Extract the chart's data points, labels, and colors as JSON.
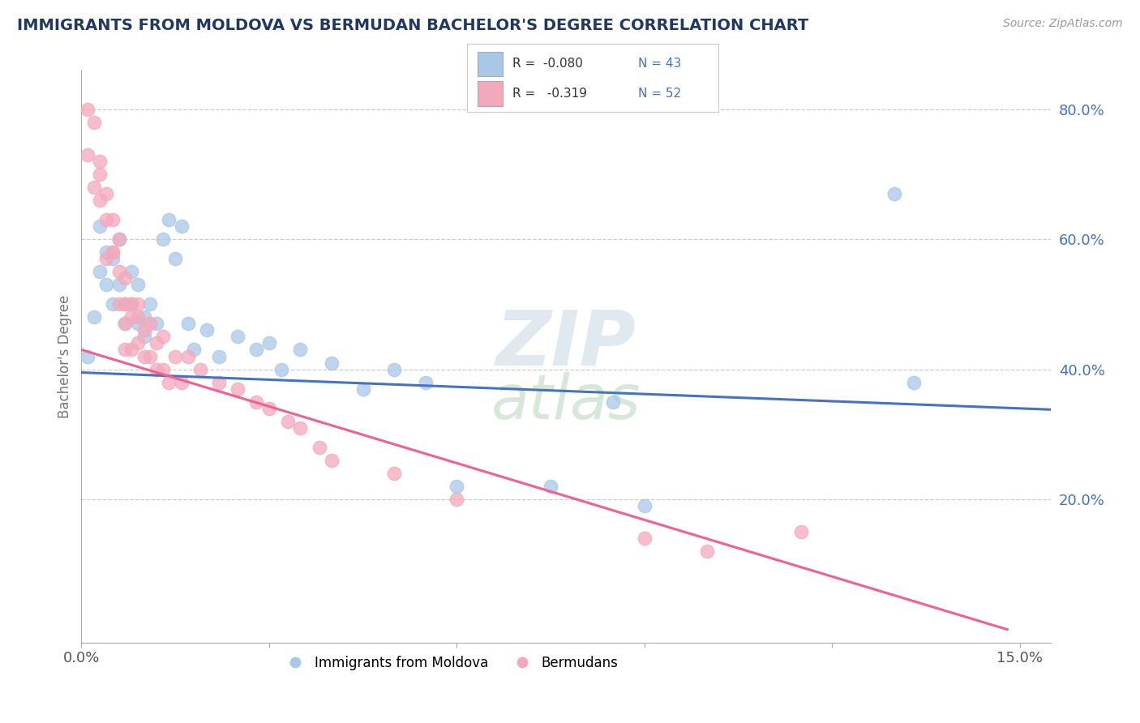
{
  "title": "IMMIGRANTS FROM MOLDOVA VS BERMUDAN BACHELOR'S DEGREE CORRELATION CHART",
  "source": "Source: ZipAtlas.com",
  "ylabel": "Bachelor's Degree",
  "x_lim": [
    0.0,
    0.155
  ],
  "y_lim": [
    -0.02,
    0.86
  ],
  "y_ticks_right": [
    0.2,
    0.4,
    0.6,
    0.8
  ],
  "y_tick_labels_right": [
    "20.0%",
    "40.0%",
    "60.0%",
    "80.0%"
  ],
  "legend_R1": "-0.080",
  "legend_N1": "43",
  "legend_R2": "-0.319",
  "legend_N2": "52",
  "blue_color": "#A8C8E8",
  "pink_color": "#F4A8BB",
  "blue_line_color": "#4472C4",
  "pink_line_color": "#F06090",
  "blue_scatter_x": [
    0.001,
    0.002,
    0.003,
    0.003,
    0.004,
    0.004,
    0.005,
    0.005,
    0.006,
    0.006,
    0.007,
    0.007,
    0.008,
    0.008,
    0.009,
    0.009,
    0.01,
    0.01,
    0.011,
    0.012,
    0.013,
    0.014,
    0.015,
    0.016,
    0.017,
    0.018,
    0.02,
    0.022,
    0.025,
    0.028,
    0.03,
    0.032,
    0.035,
    0.04,
    0.045,
    0.05,
    0.055,
    0.06,
    0.075,
    0.085,
    0.09,
    0.13,
    0.133
  ],
  "blue_scatter_y": [
    0.42,
    0.48,
    0.55,
    0.62,
    0.58,
    0.53,
    0.5,
    0.57,
    0.6,
    0.53,
    0.5,
    0.47,
    0.55,
    0.5,
    0.47,
    0.53,
    0.48,
    0.45,
    0.5,
    0.47,
    0.6,
    0.63,
    0.57,
    0.62,
    0.47,
    0.43,
    0.46,
    0.42,
    0.45,
    0.43,
    0.44,
    0.4,
    0.43,
    0.41,
    0.37,
    0.4,
    0.38,
    0.22,
    0.22,
    0.35,
    0.19,
    0.67,
    0.38
  ],
  "pink_scatter_x": [
    0.001,
    0.001,
    0.002,
    0.002,
    0.003,
    0.003,
    0.003,
    0.004,
    0.004,
    0.004,
    0.005,
    0.005,
    0.005,
    0.006,
    0.006,
    0.006,
    0.007,
    0.007,
    0.007,
    0.007,
    0.008,
    0.008,
    0.008,
    0.009,
    0.009,
    0.009,
    0.01,
    0.01,
    0.011,
    0.011,
    0.012,
    0.012,
    0.013,
    0.013,
    0.014,
    0.015,
    0.016,
    0.017,
    0.019,
    0.022,
    0.025,
    0.028,
    0.03,
    0.033,
    0.035,
    0.038,
    0.04,
    0.05,
    0.06,
    0.09,
    0.1,
    0.115
  ],
  "pink_scatter_y": [
    0.8,
    0.73,
    0.78,
    0.68,
    0.72,
    0.66,
    0.7,
    0.63,
    0.57,
    0.67,
    0.58,
    0.63,
    0.58,
    0.55,
    0.5,
    0.6,
    0.5,
    0.54,
    0.47,
    0.43,
    0.48,
    0.43,
    0.5,
    0.5,
    0.44,
    0.48,
    0.42,
    0.46,
    0.42,
    0.47,
    0.4,
    0.44,
    0.4,
    0.45,
    0.38,
    0.42,
    0.38,
    0.42,
    0.4,
    0.38,
    0.37,
    0.35,
    0.34,
    0.32,
    0.31,
    0.28,
    0.26,
    0.24,
    0.2,
    0.14,
    0.12,
    0.15
  ],
  "blue_line_x": [
    0.0,
    0.155
  ],
  "blue_line_y": [
    0.395,
    0.338
  ],
  "pink_line_x": [
    0.0,
    0.148
  ],
  "pink_line_y": [
    0.43,
    0.0
  ]
}
